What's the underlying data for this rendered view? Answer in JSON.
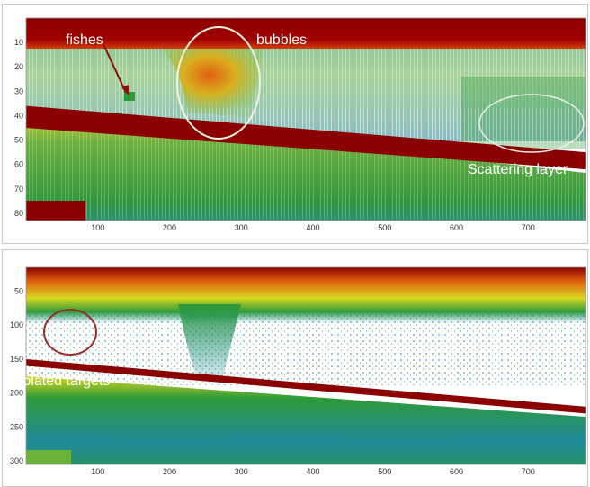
{
  "chart_data": [
    {
      "type": "heatmap",
      "title": "",
      "xlabel": "",
      "ylabel": "",
      "xlim": [
        0,
        780
      ],
      "ylim": [
        83,
        0
      ],
      "x_ticks": [
        100,
        200,
        300,
        400,
        500,
        600,
        700
      ],
      "y_ticks": [
        10,
        20,
        30,
        40,
        50,
        60,
        70,
        80
      ],
      "colormap": [
        "#ffffff",
        "#1f8a9a",
        "#2e9a3a",
        "#d8d820",
        "#e06010",
        "#8b0000"
      ],
      "layers": {
        "surface_band": {
          "x": [
            0,
            780
          ],
          "depth_top": [
            0,
            0
          ],
          "depth_bottom": [
            10,
            10
          ]
        },
        "seabed": {
          "x": [
            0,
            780
          ],
          "depth_top": [
            36,
            55
          ],
          "depth_bottom": [
            45,
            62
          ]
        }
      },
      "annotations": [
        {
          "label": "fishes",
          "x": 140,
          "y": 30
        },
        {
          "label": "bubbles",
          "x": 265,
          "y": 28
        },
        {
          "label": "Scattering layer",
          "x": 660,
          "y": 42
        }
      ]
    },
    {
      "type": "heatmap",
      "title": "",
      "xlabel": "",
      "ylabel": "",
      "xlim": [
        0,
        780
      ],
      "ylim": [
        305,
        15
      ],
      "x_ticks": [
        100,
        200,
        300,
        400,
        500,
        600,
        700
      ],
      "y_ticks": [
        50,
        100,
        150,
        200,
        250,
        300
      ],
      "colormap": [
        "#ffffff",
        "#1f8a9a",
        "#2e9a3a",
        "#d8d820",
        "#e06010",
        "#8b0000"
      ],
      "layers": {
        "surface_band": {
          "x": [
            0,
            780
          ],
          "depth_top": [
            15,
            15
          ],
          "depth_bottom": [
            45,
            45
          ]
        },
        "seabed": {
          "x": [
            0,
            780
          ],
          "depth_top": [
            150,
            220
          ],
          "depth_bottom": [
            160,
            230
          ]
        }
      },
      "annotations": [
        {
          "label": "Isolated targets",
          "x": 60,
          "y": 100
        }
      ]
    }
  ],
  "labels": {
    "fishes": "fishes",
    "bubbles": "bubbles",
    "scattering": "Scattering layer",
    "isolated": "Isolated targets"
  }
}
